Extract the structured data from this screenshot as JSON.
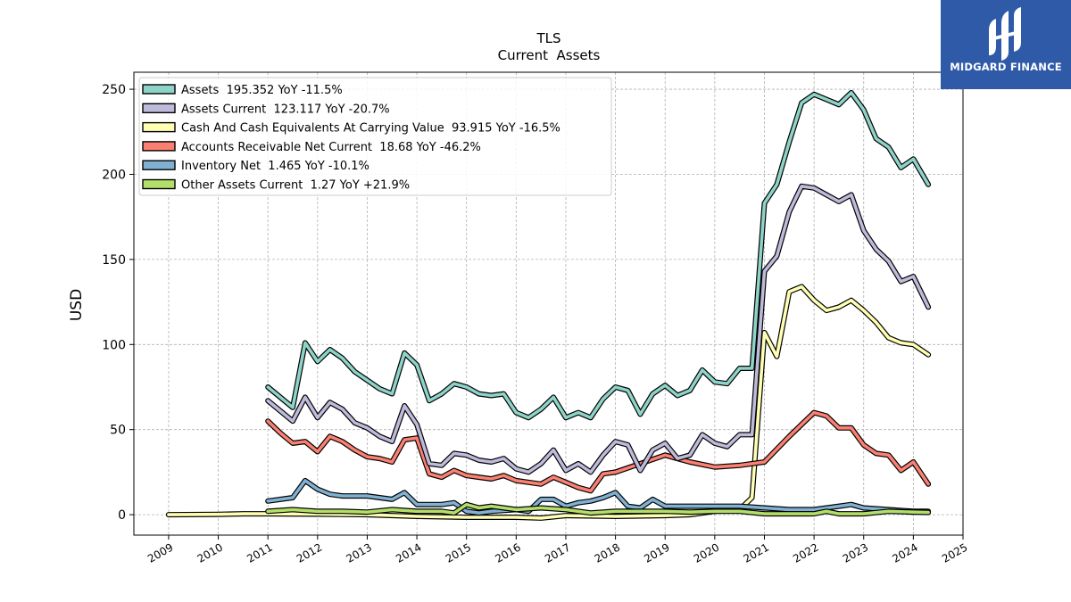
{
  "brand": {
    "name": "MIDGARD FINANCE",
    "bg_color": "#2f5aa8"
  },
  "chart_data": {
    "type": "line",
    "title": "TLS",
    "subtitle": "Current  Assets",
    "ylabel": "USD",
    "xlabel": "",
    "ylim": [
      -12,
      260
    ],
    "xlim": [
      2008.3,
      2025.0
    ],
    "yticks": [
      0,
      50,
      100,
      150,
      200,
      250
    ],
    "xticks": [
      2009,
      2010,
      2011,
      2012,
      2013,
      2014,
      2015,
      2016,
      2017,
      2018,
      2019,
      2020,
      2021,
      2022,
      2023,
      2024,
      2025
    ],
    "grid": true,
    "legend_position": "top-left",
    "series": [
      {
        "name": "Assets",
        "legend": "Assets  195.352 YoY -11.5%",
        "color": "#8dd3c7",
        "points": [
          [
            2011.0,
            75
          ],
          [
            2011.5,
            63
          ],
          [
            2011.75,
            101
          ],
          [
            2012.0,
            90
          ],
          [
            2012.25,
            97
          ],
          [
            2012.5,
            92
          ],
          [
            2012.75,
            84
          ],
          [
            2013.0,
            79
          ],
          [
            2013.25,
            74
          ],
          [
            2013.5,
            71
          ],
          [
            2013.75,
            95
          ],
          [
            2014.0,
            88
          ],
          [
            2014.25,
            67
          ],
          [
            2014.5,
            71
          ],
          [
            2014.75,
            77
          ],
          [
            2015.0,
            75
          ],
          [
            2015.25,
            71
          ],
          [
            2015.5,
            70
          ],
          [
            2015.75,
            71
          ],
          [
            2016.0,
            60
          ],
          [
            2016.25,
            57
          ],
          [
            2016.5,
            62
          ],
          [
            2016.75,
            69
          ],
          [
            2017.0,
            57
          ],
          [
            2017.25,
            60
          ],
          [
            2017.5,
            57
          ],
          [
            2017.75,
            68
          ],
          [
            2018.0,
            75
          ],
          [
            2018.25,
            73
          ],
          [
            2018.5,
            59
          ],
          [
            2018.75,
            71
          ],
          [
            2019.0,
            76
          ],
          [
            2019.25,
            70
          ],
          [
            2019.5,
            73
          ],
          [
            2019.75,
            85
          ],
          [
            2020.0,
            78
          ],
          [
            2020.25,
            77
          ],
          [
            2020.5,
            86
          ],
          [
            2020.75,
            86
          ],
          [
            2021.0,
            183
          ],
          [
            2021.25,
            194
          ],
          [
            2021.5,
            219
          ],
          [
            2021.75,
            242
          ],
          [
            2022.0,
            247
          ],
          [
            2022.25,
            244
          ],
          [
            2022.5,
            241
          ],
          [
            2022.75,
            248
          ],
          [
            2023.0,
            238
          ],
          [
            2023.25,
            221
          ],
          [
            2023.5,
            216
          ],
          [
            2023.75,
            204
          ],
          [
            2024.0,
            209
          ],
          [
            2024.3,
            194
          ]
        ]
      },
      {
        "name": "Assets Current",
        "legend": "Assets Current  123.117 YoY -20.7%",
        "color": "#bebada",
        "points": [
          [
            2011.0,
            67
          ],
          [
            2011.5,
            55
          ],
          [
            2011.75,
            69
          ],
          [
            2012.0,
            57
          ],
          [
            2012.25,
            66
          ],
          [
            2012.5,
            62
          ],
          [
            2012.75,
            54
          ],
          [
            2013.0,
            51
          ],
          [
            2013.25,
            46
          ],
          [
            2013.5,
            43
          ],
          [
            2013.75,
            64
          ],
          [
            2014.0,
            53
          ],
          [
            2014.25,
            30
          ],
          [
            2014.5,
            29
          ],
          [
            2014.75,
            36
          ],
          [
            2015.0,
            35
          ],
          [
            2015.25,
            32
          ],
          [
            2015.5,
            31
          ],
          [
            2015.75,
            33
          ],
          [
            2016.0,
            27
          ],
          [
            2016.25,
            25
          ],
          [
            2016.5,
            30
          ],
          [
            2016.75,
            38
          ],
          [
            2017.0,
            26
          ],
          [
            2017.25,
            30
          ],
          [
            2017.5,
            25
          ],
          [
            2017.75,
            35
          ],
          [
            2018.0,
            43
          ],
          [
            2018.25,
            41
          ],
          [
            2018.5,
            26
          ],
          [
            2018.75,
            38
          ],
          [
            2019.0,
            42
          ],
          [
            2019.25,
            33
          ],
          [
            2019.5,
            35
          ],
          [
            2019.75,
            47
          ],
          [
            2020.0,
            42
          ],
          [
            2020.25,
            40
          ],
          [
            2020.5,
            47
          ],
          [
            2020.75,
            47
          ],
          [
            2021.0,
            143
          ],
          [
            2021.25,
            152
          ],
          [
            2021.5,
            178
          ],
          [
            2021.75,
            193
          ],
          [
            2022.0,
            192
          ],
          [
            2022.25,
            188
          ],
          [
            2022.5,
            184
          ],
          [
            2022.75,
            188
          ],
          [
            2023.0,
            167
          ],
          [
            2023.25,
            156
          ],
          [
            2023.5,
            149
          ],
          [
            2023.75,
            137
          ],
          [
            2024.0,
            140
          ],
          [
            2024.3,
            122
          ]
        ]
      },
      {
        "name": "Cash And Cash Equivalents At Carrying Value",
        "legend": "Cash And Cash Equivalents At Carrying Value  93.915 YoY -16.5%",
        "color": "#ffffb3",
        "points": [
          [
            2009.0,
            0
          ],
          [
            2010.0,
            0.2
          ],
          [
            2010.5,
            0.5
          ],
          [
            2011.0,
            0.5
          ],
          [
            2012.0,
            0.3
          ],
          [
            2013.0,
            0
          ],
          [
            2014.0,
            -1
          ],
          [
            2015.0,
            -1.5
          ],
          [
            2016.0,
            -1.5
          ],
          [
            2016.5,
            -2
          ],
          [
            2017.0,
            -0.5
          ],
          [
            2018.0,
            -1
          ],
          [
            2019.0,
            -0.5
          ],
          [
            2019.5,
            0
          ],
          [
            2020.0,
            2
          ],
          [
            2020.5,
            3
          ],
          [
            2020.75,
            10
          ],
          [
            2021.0,
            107
          ],
          [
            2021.25,
            93
          ],
          [
            2021.5,
            131
          ],
          [
            2021.75,
            134
          ],
          [
            2022.0,
            126
          ],
          [
            2022.25,
            120
          ],
          [
            2022.5,
            122
          ],
          [
            2022.75,
            126
          ],
          [
            2023.0,
            120
          ],
          [
            2023.25,
            113
          ],
          [
            2023.5,
            104
          ],
          [
            2023.75,
            101
          ],
          [
            2024.0,
            100
          ],
          [
            2024.3,
            94
          ]
        ]
      },
      {
        "name": "Accounts Receivable Net Current",
        "legend": "Accounts Receivable Net Current  18.68 YoY -46.2%",
        "color": "#fb8072",
        "points": [
          [
            2011.0,
            55
          ],
          [
            2011.25,
            48
          ],
          [
            2011.5,
            42
          ],
          [
            2011.75,
            43
          ],
          [
            2012.0,
            37
          ],
          [
            2012.25,
            46
          ],
          [
            2012.5,
            43
          ],
          [
            2012.75,
            38
          ],
          [
            2013.0,
            34
          ],
          [
            2013.25,
            33
          ],
          [
            2013.5,
            31
          ],
          [
            2013.75,
            44
          ],
          [
            2014.0,
            45
          ],
          [
            2014.25,
            24
          ],
          [
            2014.5,
            22
          ],
          [
            2014.75,
            26
          ],
          [
            2015.0,
            23
          ],
          [
            2015.25,
            22
          ],
          [
            2015.5,
            21
          ],
          [
            2015.75,
            23
          ],
          [
            2016.0,
            20
          ],
          [
            2016.25,
            19
          ],
          [
            2016.5,
            18
          ],
          [
            2016.75,
            22
          ],
          [
            2017.0,
            19
          ],
          [
            2017.25,
            16
          ],
          [
            2017.5,
            14
          ],
          [
            2017.75,
            24
          ],
          [
            2018.0,
            25
          ],
          [
            2018.5,
            30
          ],
          [
            2019.0,
            35
          ],
          [
            2019.5,
            31
          ],
          [
            2020.0,
            28
          ],
          [
            2020.5,
            29
          ],
          [
            2021.0,
            31
          ],
          [
            2021.5,
            46
          ],
          [
            2022.0,
            60
          ],
          [
            2022.25,
            58
          ],
          [
            2022.5,
            51
          ],
          [
            2022.75,
            51
          ],
          [
            2023.0,
            41
          ],
          [
            2023.25,
            36
          ],
          [
            2023.5,
            35
          ],
          [
            2023.75,
            26
          ],
          [
            2024.0,
            31
          ],
          [
            2024.3,
            18
          ]
        ]
      },
      {
        "name": "Inventory Net",
        "legend": "Inventory Net  1.465 YoY -10.1%",
        "color": "#80b1d3",
        "points": [
          [
            2011.0,
            8
          ],
          [
            2011.5,
            10
          ],
          [
            2011.75,
            20
          ],
          [
            2012.0,
            15
          ],
          [
            2012.25,
            12
          ],
          [
            2012.5,
            11
          ],
          [
            2012.75,
            11
          ],
          [
            2013.0,
            11
          ],
          [
            2013.5,
            9
          ],
          [
            2013.75,
            13
          ],
          [
            2014.0,
            6
          ],
          [
            2014.5,
            6
          ],
          [
            2014.75,
            7
          ],
          [
            2015.0,
            2
          ],
          [
            2015.25,
            1
          ],
          [
            2015.5,
            2
          ],
          [
            2016.0,
            3
          ],
          [
            2016.25,
            2
          ],
          [
            2016.5,
            9
          ],
          [
            2016.75,
            9
          ],
          [
            2017.0,
            5
          ],
          [
            2017.25,
            7
          ],
          [
            2017.5,
            8
          ],
          [
            2017.75,
            10
          ],
          [
            2018.0,
            13
          ],
          [
            2018.25,
            5
          ],
          [
            2018.5,
            4
          ],
          [
            2018.75,
            9
          ],
          [
            2019.0,
            5
          ],
          [
            2019.5,
            5
          ],
          [
            2020.0,
            5
          ],
          [
            2020.5,
            5
          ],
          [
            2021.0,
            4
          ],
          [
            2021.5,
            3
          ],
          [
            2022.0,
            3
          ],
          [
            2022.5,
            5
          ],
          [
            2022.75,
            6
          ],
          [
            2023.0,
            4
          ],
          [
            2023.5,
            3
          ],
          [
            2024.0,
            2
          ],
          [
            2024.3,
            2
          ]
        ]
      },
      {
        "name": "Other Assets Current",
        "legend": "Other Assets Current  1.27 YoY +21.9%",
        "color": "#b3de69",
        "points": [
          [
            2011.0,
            2
          ],
          [
            2011.5,
            3
          ],
          [
            2012.0,
            2
          ],
          [
            2012.5,
            2
          ],
          [
            2013.0,
            1.5
          ],
          [
            2013.5,
            3
          ],
          [
            2014.0,
            2
          ],
          [
            2014.5,
            2
          ],
          [
            2014.75,
            1
          ],
          [
            2015.0,
            6
          ],
          [
            2015.25,
            4
          ],
          [
            2015.5,
            5
          ],
          [
            2015.75,
            4
          ],
          [
            2016.0,
            3
          ],
          [
            2016.5,
            4
          ],
          [
            2017.0,
            3
          ],
          [
            2017.5,
            1
          ],
          [
            2018.0,
            2
          ],
          [
            2018.5,
            2
          ],
          [
            2019.0,
            2
          ],
          [
            2019.5,
            1.5
          ],
          [
            2020.0,
            2
          ],
          [
            2020.5,
            2
          ],
          [
            2021.0,
            0.5
          ],
          [
            2021.5,
            0.5
          ],
          [
            2022.0,
            0.5
          ],
          [
            2022.25,
            2
          ],
          [
            2022.5,
            0.5
          ],
          [
            2023.0,
            0.5
          ],
          [
            2023.5,
            2
          ],
          [
            2024.0,
            1.5
          ],
          [
            2024.3,
            1.3
          ]
        ]
      }
    ]
  }
}
